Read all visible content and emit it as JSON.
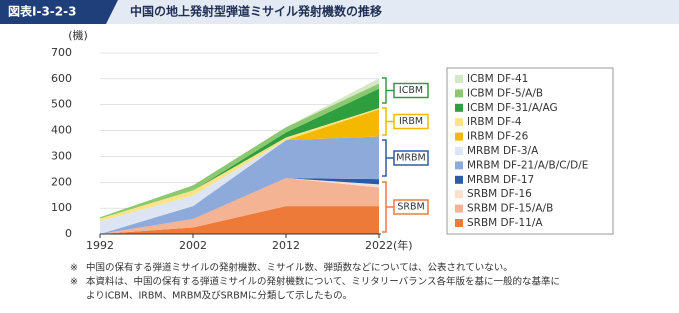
{
  "header": {
    "figure_no": "図表Ⅰ-3-2-3",
    "title": "中国の地上発射型弾道ミサイル発射機数の推移"
  },
  "chart_data": {
    "type": "stacked-area",
    "y_unit": "(機)",
    "x_unit": "(年)",
    "x": [
      1992,
      2002,
      2012,
      2022
    ],
    "xlim": [
      1992,
      2022
    ],
    "xticks": [
      1992,
      2002,
      2012,
      2022
    ],
    "ylim": [
      0,
      700
    ],
    "yticks": [
      0,
      100,
      200,
      300,
      400,
      500,
      600,
      700
    ],
    "series": [
      {
        "name": "SRBM DF-11/A",
        "color": "#ee7a3a",
        "values": [
          0,
          25,
          108,
          108
        ]
      },
      {
        "name": "SRBM DF-15/A/B",
        "color": "#f4b494",
        "values": [
          0,
          33,
          108,
          72
        ]
      },
      {
        "name": "SRBM DF-16",
        "color": "#fbe0d0",
        "values": [
          0,
          0,
          0,
          12
        ]
      },
      {
        "name": "MRBM DF-17",
        "color": "#2a5ba8",
        "values": [
          0,
          0,
          0,
          20
        ]
      },
      {
        "name": "MRBM DF-21/A/B/C/D/E",
        "color": "#8eaadb",
        "values": [
          0,
          50,
          147,
          165
        ]
      },
      {
        "name": "MRBM DF-3/A",
        "color": "#dde5f2",
        "values": [
          50,
          40,
          0,
          0
        ]
      },
      {
        "name": "IRBM DF-26",
        "color": "#f5b800",
        "values": [
          0,
          0,
          0,
          105
        ]
      },
      {
        "name": "IRBM DF-4",
        "color": "#fbe38a",
        "values": [
          10,
          20,
          10,
          5
        ]
      },
      {
        "name": "ICBM DF-31/A/AG",
        "color": "#2e9e3e",
        "values": [
          0,
          0,
          20,
          75
        ]
      },
      {
        "name": "ICBM DF-5/A/B",
        "color": "#8cc870",
        "values": [
          5,
          20,
          20,
          20
        ]
      },
      {
        "name": "ICBM DF-41",
        "color": "#d4e8c4",
        "values": [
          0,
          0,
          0,
          20
        ]
      }
    ],
    "groups": [
      {
        "label": "ICBM",
        "color": "#2e9e3e"
      },
      {
        "label": "IRBM",
        "color": "#f5b800"
      },
      {
        "label": "MRBM",
        "color": "#2a5ba8"
      },
      {
        "label": "SRBM",
        "color": "#ee7a3a"
      }
    ]
  },
  "notes": [
    {
      "mark": "※",
      "lines": [
        "中国の保有する弾道ミサイルの発射機数、ミサイル数、弾頭数などについては、公表されていない。"
      ]
    },
    {
      "mark": "※",
      "lines": [
        "本資料は、中国の保有する弾道ミサイルの発射機数について、ミリタリーバランス各年版を基に一般的な基準に",
        "よりICBM、IRBM、MRBM及びSRBMに分類して示したもの。"
      ]
    }
  ]
}
